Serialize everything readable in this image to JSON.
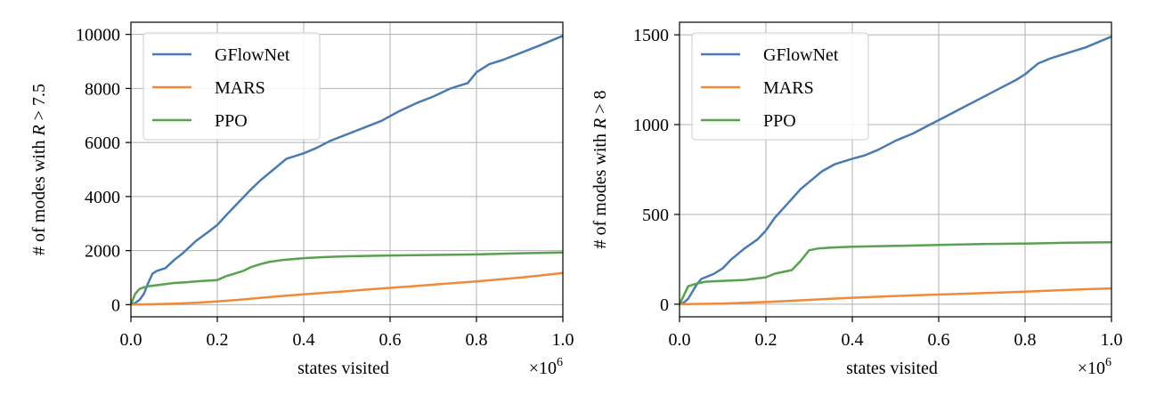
{
  "colors": {
    "GFlowNet": "#4a7bb0",
    "MARS": "#f08a3a",
    "PPO": "#58a14e",
    "grid": "#b0b0b0",
    "axis": "#000000"
  },
  "chart_data": [
    {
      "type": "line",
      "xlabel": "states visited",
      "ylabel_prefix": "# of modes with ",
      "ylabel_var": "R",
      "ylabel_suffix": " > 7.5",
      "x_multiplier": "×10",
      "x_multiplier_exp": "6",
      "xlim": [
        0,
        1.0
      ],
      "ylim": [
        -450,
        10450
      ],
      "xticks": [
        0.0,
        0.2,
        0.4,
        0.6,
        0.8,
        1.0
      ],
      "xtick_labels": [
        "0.0",
        "0.2",
        "0.4",
        "0.6",
        "0.8",
        "1.0"
      ],
      "yticks": [
        0,
        2000,
        4000,
        6000,
        8000,
        10000
      ],
      "ytick_labels": [
        "0",
        "2000",
        "4000",
        "6000",
        "8000",
        "10000"
      ],
      "grid": true,
      "legend": "top-left",
      "series": [
        {
          "name": "GFlowNet",
          "x": [
            0,
            0.01,
            0.02,
            0.03,
            0.04,
            0.05,
            0.06,
            0.08,
            0.1,
            0.12,
            0.15,
            0.18,
            0.2,
            0.22,
            0.25,
            0.28,
            0.3,
            0.33,
            0.36,
            0.4,
            0.43,
            0.46,
            0.5,
            0.54,
            0.58,
            0.62,
            0.66,
            0.7,
            0.74,
            0.78,
            0.8,
            0.83,
            0.86,
            0.9,
            0.94,
            0.97,
            1.0
          ],
          "y": [
            0,
            60,
            180,
            400,
            800,
            1150,
            1250,
            1350,
            1650,
            1900,
            2350,
            2700,
            2950,
            3300,
            3800,
            4300,
            4600,
            5000,
            5400,
            5600,
            5800,
            6050,
            6300,
            6550,
            6800,
            7150,
            7450,
            7700,
            8000,
            8200,
            8600,
            8900,
            9050,
            9300,
            9550,
            9750,
            9950
          ]
        },
        {
          "name": "MARS",
          "x": [
            0,
            0.05,
            0.1,
            0.15,
            0.2,
            0.25,
            0.3,
            0.35,
            0.4,
            0.45,
            0.5,
            0.55,
            0.6,
            0.65,
            0.7,
            0.75,
            0.8,
            0.85,
            0.9,
            0.95,
            1.0
          ],
          "y": [
            0,
            15,
            35,
            70,
            120,
            180,
            250,
            320,
            380,
            440,
            500,
            560,
            620,
            680,
            740,
            800,
            860,
            930,
            1000,
            1080,
            1170
          ]
        },
        {
          "name": "PPO",
          "x": [
            0,
            0.01,
            0.02,
            0.03,
            0.04,
            0.06,
            0.08,
            0.1,
            0.13,
            0.16,
            0.2,
            0.22,
            0.24,
            0.26,
            0.28,
            0.3,
            0.32,
            0.35,
            0.4,
            0.45,
            0.5,
            0.6,
            0.7,
            0.8,
            0.85,
            0.9,
            1.0
          ],
          "y": [
            0,
            400,
            580,
            640,
            680,
            720,
            760,
            800,
            830,
            870,
            910,
            1050,
            1150,
            1250,
            1400,
            1500,
            1580,
            1650,
            1720,
            1760,
            1790,
            1820,
            1840,
            1860,
            1880,
            1900,
            1930
          ]
        }
      ]
    },
    {
      "type": "line",
      "xlabel": "states visited",
      "ylabel_prefix": "# of modes with ",
      "ylabel_var": "R",
      "ylabel_suffix": " > 8",
      "x_multiplier": "×10",
      "x_multiplier_exp": "6",
      "xlim": [
        0,
        1.0
      ],
      "ylim": [
        -70,
        1570
      ],
      "xticks": [
        0.0,
        0.2,
        0.4,
        0.6,
        0.8,
        1.0
      ],
      "xtick_labels": [
        "0.0",
        "0.2",
        "0.4",
        "0.6",
        "0.8",
        "1.0"
      ],
      "yticks": [
        0,
        500,
        1000,
        1500
      ],
      "ytick_labels": [
        "0",
        "500",
        "1000",
        "1500"
      ],
      "grid": true,
      "legend": "top-left",
      "series": [
        {
          "name": "GFlowNet",
          "x": [
            0,
            0.01,
            0.02,
            0.03,
            0.04,
            0.05,
            0.06,
            0.08,
            0.1,
            0.12,
            0.15,
            0.18,
            0.2,
            0.22,
            0.25,
            0.28,
            0.3,
            0.33,
            0.36,
            0.4,
            0.43,
            0.46,
            0.5,
            0.54,
            0.58,
            0.62,
            0.66,
            0.7,
            0.74,
            0.78,
            0.8,
            0.83,
            0.86,
            0.9,
            0.94,
            0.97,
            1.0
          ],
          "y": [
            0,
            10,
            30,
            70,
            110,
            140,
            150,
            170,
            200,
            250,
            310,
            360,
            410,
            480,
            560,
            640,
            680,
            740,
            780,
            810,
            830,
            860,
            910,
            950,
            1000,
            1050,
            1100,
            1150,
            1200,
            1250,
            1280,
            1340,
            1370,
            1400,
            1430,
            1460,
            1490
          ]
        },
        {
          "name": "MARS",
          "x": [
            0,
            0.05,
            0.1,
            0.15,
            0.2,
            0.25,
            0.3,
            0.35,
            0.4,
            0.45,
            0.5,
            0.55,
            0.6,
            0.65,
            0.7,
            0.75,
            0.8,
            0.85,
            0.9,
            0.95,
            1.0
          ],
          "y": [
            0,
            2,
            4,
            8,
            12,
            18,
            24,
            30,
            36,
            41,
            46,
            50,
            54,
            58,
            62,
            66,
            70,
            75,
            80,
            84,
            88
          ]
        },
        {
          "name": "PPO",
          "x": [
            0,
            0.01,
            0.02,
            0.04,
            0.06,
            0.1,
            0.15,
            0.2,
            0.22,
            0.24,
            0.26,
            0.28,
            0.3,
            0.32,
            0.35,
            0.4,
            0.5,
            0.6,
            0.7,
            0.8,
            0.85,
            0.9,
            1.0
          ],
          "y": [
            0,
            50,
            100,
            115,
            125,
            130,
            135,
            150,
            170,
            180,
            190,
            240,
            300,
            310,
            315,
            320,
            325,
            330,
            335,
            338,
            340,
            342,
            345
          ]
        }
      ]
    }
  ]
}
